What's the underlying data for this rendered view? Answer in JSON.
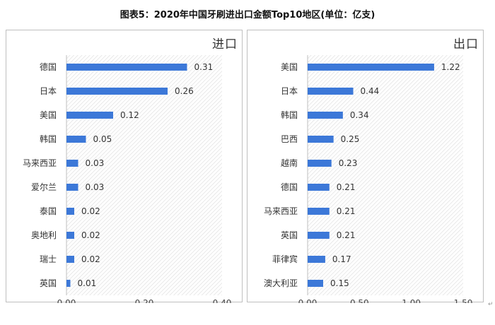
{
  "title": "图表5：2020年中国牙刷进出口金额Top10地区(单位：亿支)",
  "corner_mark": "↵",
  "colors": {
    "bar": "#3c78d8",
    "hatch": "#e3e3e3",
    "axis": "#bfbfbf"
  },
  "chart_data": [
    {
      "type": "bar",
      "orientation": "horizontal",
      "panel_title": "进口",
      "categories": [
        "德国",
        "日本",
        "美国",
        "韩国",
        "马来西亚",
        "爱尔兰",
        "泰国",
        "奥地利",
        "瑞士",
        "英国"
      ],
      "values": [
        0.31,
        0.26,
        0.12,
        0.05,
        0.03,
        0.03,
        0.02,
        0.02,
        0.02,
        0.01
      ],
      "value_labels": [
        "0.31",
        "0.26",
        "0.12",
        "0.05",
        "0.03",
        "0.03",
        "0.02",
        "0.02",
        "0.02",
        "0.01"
      ],
      "xlim": [
        0,
        0.4
      ],
      "xticks": [
        0,
        0.2,
        0.4
      ],
      "xtick_labels": [
        "0.00",
        "0.20",
        "0.40"
      ],
      "grid": false
    },
    {
      "type": "bar",
      "orientation": "horizontal",
      "panel_title": "出口",
      "categories": [
        "美国",
        "日本",
        "韩国",
        "巴西",
        "越南",
        "德国",
        "马来西亚",
        "英国",
        "菲律宾",
        "澳大利亚"
      ],
      "values": [
        1.22,
        0.44,
        0.34,
        0.25,
        0.23,
        0.21,
        0.21,
        0.21,
        0.17,
        0.15
      ],
      "value_labels": [
        "1.22",
        "0.44",
        "0.34",
        "0.25",
        "0.23",
        "0.21",
        "0.21",
        "0.21",
        "0.17",
        "0.15"
      ],
      "xlim": [
        0,
        1.5
      ],
      "xticks": [
        0,
        0.5,
        1,
        1.5
      ],
      "xtick_labels": [
        "0.00",
        "0.50",
        "1.00",
        "1.50"
      ],
      "grid": false
    }
  ]
}
